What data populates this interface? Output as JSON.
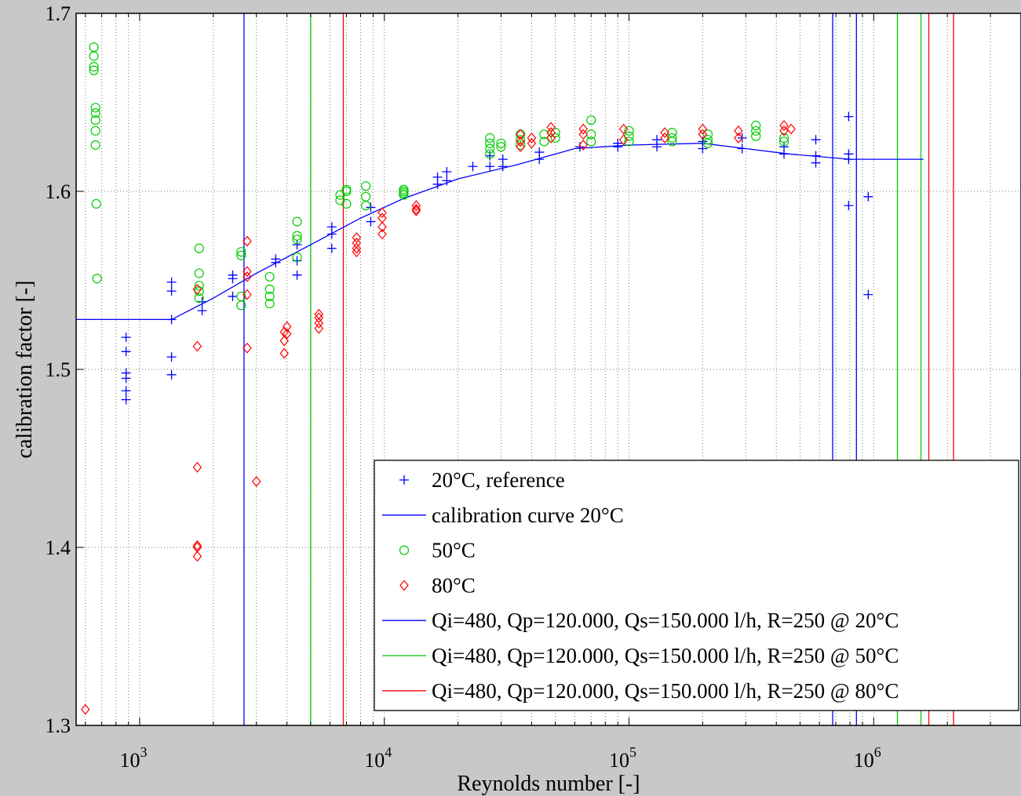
{
  "chart_data": {
    "type": "scatter",
    "title": "",
    "xlabel": "Reynolds number [-]",
    "ylabel": "calibration factor [-]",
    "xscale": "log",
    "xlim": [
      550,
      4000000
    ],
    "ylim": [
      1.3,
      1.7
    ],
    "yticks": [
      1.3,
      1.4,
      1.5,
      1.6,
      1.7
    ],
    "ytick_labels": [
      "1.3",
      "1.4",
      "1.5",
      "1.6",
      "1.7"
    ],
    "xticks": [
      1000,
      10000,
      100000,
      1000000
    ],
    "xtick_labels": [
      {
        "base": "10",
        "exp": "3"
      },
      {
        "base": "10",
        "exp": "4"
      },
      {
        "base": "10",
        "exp": "5"
      },
      {
        "base": "10",
        "exp": "6"
      }
    ],
    "grid": true,
    "legend_position": "bottom-right",
    "legend": [
      {
        "label": "20°C, reference",
        "marker": "plus",
        "color": "#0000ff"
      },
      {
        "label": "calibration curve 20°C",
        "marker": "line",
        "color": "#0000ff"
      },
      {
        "label": "50°C",
        "marker": "circle",
        "color": "#00cc00"
      },
      {
        "label": "80°C",
        "marker": "diamond",
        "color": "#ff0000"
      },
      {
        "label": "Qi=480, Qp=120.000, Qs=150.000 l/h, R=250 @ 20°C",
        "marker": "line",
        "color": "#0000ff"
      },
      {
        "label": "Qi=480, Qp=120.000, Qs=150.000 l/h, R=250 @ 50°C",
        "marker": "line",
        "color": "#00cc00"
      },
      {
        "label": "Qi=480, Qp=120.000, Qs=150.000 l/h, R=250 @ 80°C",
        "marker": "line",
        "color": "#ff0000"
      }
    ],
    "series": [
      {
        "name": "20°C, reference",
        "kind": "scatter",
        "marker": "plus",
        "color": "#0000ff",
        "points": [
          [
            880,
            1.518
          ],
          [
            880,
            1.51
          ],
          [
            880,
            1.498
          ],
          [
            880,
            1.495
          ],
          [
            880,
            1.488
          ],
          [
            880,
            1.483
          ],
          [
            1350,
            1.549
          ],
          [
            1350,
            1.544
          ],
          [
            1350,
            1.528
          ],
          [
            1350,
            1.507
          ],
          [
            1350,
            1.497
          ],
          [
            1800,
            1.538
          ],
          [
            1800,
            1.533
          ],
          [
            2400,
            1.553
          ],
          [
            2400,
            1.551
          ],
          [
            2400,
            1.541
          ],
          [
            3600,
            1.562
          ],
          [
            3600,
            1.56
          ],
          [
            4400,
            1.57
          ],
          [
            4400,
            1.561
          ],
          [
            4400,
            1.553
          ],
          [
            6100,
            1.58
          ],
          [
            6100,
            1.576
          ],
          [
            6100,
            1.568
          ],
          [
            8800,
            1.591
          ],
          [
            8800,
            1.583
          ],
          [
            16500,
            1.608
          ],
          [
            16500,
            1.604
          ],
          [
            18000,
            1.611
          ],
          [
            18000,
            1.606
          ],
          [
            23000,
            1.614
          ],
          [
            27000,
            1.62
          ],
          [
            27000,
            1.614
          ],
          [
            30500,
            1.618
          ],
          [
            30500,
            1.614
          ],
          [
            43000,
            1.622
          ],
          [
            43000,
            1.618
          ],
          [
            63000,
            1.625
          ],
          [
            90000,
            1.627
          ],
          [
            90000,
            1.625
          ],
          [
            130000,
            1.629
          ],
          [
            130000,
            1.625
          ],
          [
            200000,
            1.628
          ],
          [
            200000,
            1.624
          ],
          [
            290000,
            1.63
          ],
          [
            290000,
            1.624
          ],
          [
            430000,
            1.625
          ],
          [
            430000,
            1.621
          ],
          [
            580000,
            1.629
          ],
          [
            580000,
            1.62
          ],
          [
            580000,
            1.616
          ],
          [
            790000,
            1.642
          ],
          [
            790000,
            1.621
          ],
          [
            790000,
            1.618
          ],
          [
            790000,
            1.592
          ],
          [
            950000,
            1.597
          ],
          [
            950000,
            1.542
          ]
        ]
      },
      {
        "name": "calibration curve 20°C",
        "kind": "line",
        "color": "#0000ff",
        "points": [
          [
            550,
            1.528
          ],
          [
            1350,
            1.528
          ],
          [
            2000,
            1.54
          ],
          [
            3000,
            1.554
          ],
          [
            5000,
            1.57
          ],
          [
            8000,
            1.585
          ],
          [
            12000,
            1.596
          ],
          [
            20000,
            1.607
          ],
          [
            35000,
            1.615
          ],
          [
            60000,
            1.624
          ],
          [
            100000,
            1.626
          ],
          [
            200000,
            1.627
          ],
          [
            300000,
            1.624
          ],
          [
            450000,
            1.621
          ],
          [
            800000,
            1.618
          ],
          [
            1600000,
            1.618
          ]
        ]
      },
      {
        "name": "50°C",
        "kind": "scatter",
        "marker": "circle",
        "color": "#00cc00",
        "points": [
          [
            650,
            1.681
          ],
          [
            650,
            1.676
          ],
          [
            650,
            1.67
          ],
          [
            650,
            1.668
          ],
          [
            660,
            1.647
          ],
          [
            660,
            1.644
          ],
          [
            660,
            1.64
          ],
          [
            660,
            1.634
          ],
          [
            660,
            1.626
          ],
          [
            665,
            1.593
          ],
          [
            670,
            1.551
          ],
          [
            1750,
            1.568
          ],
          [
            1750,
            1.554
          ],
          [
            1750,
            1.547
          ],
          [
            1750,
            1.544
          ],
          [
            1750,
            1.54
          ],
          [
            2600,
            1.566
          ],
          [
            2600,
            1.564
          ],
          [
            2600,
            1.541
          ],
          [
            2600,
            1.536
          ],
          [
            3400,
            1.552
          ],
          [
            3400,
            1.545
          ],
          [
            3400,
            1.541
          ],
          [
            3400,
            1.537
          ],
          [
            4400,
            1.583
          ],
          [
            4400,
            1.575
          ],
          [
            4400,
            1.573
          ],
          [
            4400,
            1.563
          ],
          [
            6600,
            1.598
          ],
          [
            6600,
            1.595
          ],
          [
            7000,
            1.601
          ],
          [
            7000,
            1.6
          ],
          [
            7000,
            1.593
          ],
          [
            8400,
            1.603
          ],
          [
            8400,
            1.597
          ],
          [
            8400,
            1.592
          ],
          [
            12000,
            1.601
          ],
          [
            12000,
            1.6
          ],
          [
            12000,
            1.599
          ],
          [
            12000,
            1.598
          ],
          [
            27000,
            1.63
          ],
          [
            27000,
            1.627
          ],
          [
            27000,
            1.624
          ],
          [
            27000,
            1.621
          ],
          [
            30000,
            1.627
          ],
          [
            30000,
            1.625
          ],
          [
            36000,
            1.632
          ],
          [
            36000,
            1.629
          ],
          [
            36000,
            1.626
          ],
          [
            45000,
            1.632
          ],
          [
            45000,
            1.628
          ],
          [
            50000,
            1.633
          ],
          [
            50000,
            1.63
          ],
          [
            70000,
            1.64
          ],
          [
            70000,
            1.632
          ],
          [
            70000,
            1.628
          ],
          [
            100000,
            1.634
          ],
          [
            100000,
            1.631
          ],
          [
            100000,
            1.628
          ],
          [
            150000,
            1.633
          ],
          [
            150000,
            1.63
          ],
          [
            150000,
            1.628
          ],
          [
            210000,
            1.632
          ],
          [
            210000,
            1.629
          ],
          [
            210000,
            1.627
          ],
          [
            330000,
            1.637
          ],
          [
            330000,
            1.634
          ],
          [
            330000,
            1.631
          ],
          [
            430000,
            1.63
          ],
          [
            430000,
            1.628
          ]
        ]
      },
      {
        "name": "80°C",
        "kind": "scatter",
        "marker": "diamond",
        "color": "#ff0000",
        "points": [
          [
            600,
            1.309
          ],
          [
            1720,
            1.545
          ],
          [
            1720,
            1.513
          ],
          [
            1720,
            1.445
          ],
          [
            1720,
            1.401
          ],
          [
            1720,
            1.4
          ],
          [
            1720,
            1.395
          ],
          [
            2750,
            1.572
          ],
          [
            2750,
            1.555
          ],
          [
            2750,
            1.552
          ],
          [
            2750,
            1.542
          ],
          [
            2750,
            1.512
          ],
          [
            3000,
            1.437
          ],
          [
            3900,
            1.521
          ],
          [
            3900,
            1.516
          ],
          [
            3900,
            1.509
          ],
          [
            4000,
            1.524
          ],
          [
            4000,
            1.52
          ],
          [
            5400,
            1.531
          ],
          [
            5400,
            1.529
          ],
          [
            5400,
            1.526
          ],
          [
            5400,
            1.523
          ],
          [
            7700,
            1.574
          ],
          [
            7700,
            1.571
          ],
          [
            7700,
            1.568
          ],
          [
            7700,
            1.566
          ],
          [
            9800,
            1.588
          ],
          [
            9800,
            1.585
          ],
          [
            9800,
            1.58
          ],
          [
            9800,
            1.576
          ],
          [
            13500,
            1.592
          ],
          [
            13500,
            1.59
          ],
          [
            13500,
            1.589
          ],
          [
            36000,
            1.632
          ],
          [
            36000,
            1.628
          ],
          [
            36000,
            1.625
          ],
          [
            40000,
            1.63
          ],
          [
            40000,
            1.627
          ],
          [
            48000,
            1.636
          ],
          [
            48000,
            1.633
          ],
          [
            48000,
            1.63
          ],
          [
            65000,
            1.635
          ],
          [
            65000,
            1.632
          ],
          [
            65000,
            1.626
          ],
          [
            95000,
            1.635
          ],
          [
            95000,
            1.629
          ],
          [
            140000,
            1.633
          ],
          [
            140000,
            1.63
          ],
          [
            200000,
            1.635
          ],
          [
            200000,
            1.632
          ],
          [
            280000,
            1.634
          ],
          [
            280000,
            1.63
          ],
          [
            430000,
            1.637
          ],
          [
            430000,
            1.634
          ],
          [
            460000,
            1.635
          ]
        ]
      }
    ],
    "vertical_lines": [
      {
        "name": "Qi=480, Qp=120.000, Qs=150.000 l/h, R=250 @ 20°C",
        "color": "#0000ff",
        "x": [
          2670,
          680000,
          850000
        ]
      },
      {
        "name": "Qi=480, Qp=120.000, Qs=150.000 l/h, R=250 @ 50°C",
        "color": "#00cc00",
        "x": [
          5000,
          1250000,
          1560000
        ]
      },
      {
        "name": "Qi=480, Qp=120.000, Qs=150.000 l/h, R=250 @ 80°C",
        "color": "#ff0000",
        "x": [
          6800,
          1680000,
          2120000
        ]
      }
    ]
  }
}
